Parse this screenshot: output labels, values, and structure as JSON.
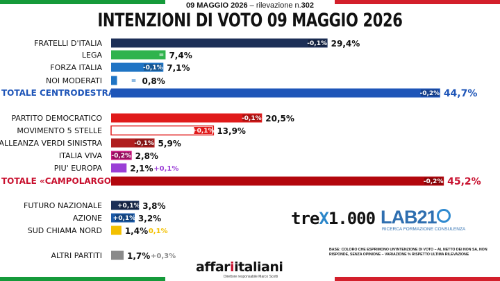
{
  "header": {
    "date_bold": "09 MAGGIO 2026",
    "date_rest": " – rilevazione n.",
    "survey_no": "302",
    "title": "INTENZIONI DI VOTO 09 MAGGIO 2026"
  },
  "colors": {
    "flag_green": "#159a3a",
    "flag_red": "#d31f2b",
    "brand_red": "#c8102e"
  },
  "chart_data": {
    "type": "bar",
    "orientation": "horizontal",
    "unit": "%",
    "rows": [
      {
        "label": "FRATELLI D'ITALIA",
        "value": 29.4,
        "value_label": "29,4%",
        "change": "-0,1%",
        "color": "#1c2f57"
      },
      {
        "label": "LEGA",
        "value": 7.4,
        "value_label": "7,4%",
        "change": "=",
        "color": "#2fb34d"
      },
      {
        "label": "FORZA ITALIA",
        "value": 7.1,
        "value_label": "7,1%",
        "change": "-0,1%",
        "color": "#1f74c4"
      },
      {
        "label": "NOI MODERATI",
        "value": 0.8,
        "value_label": "0,8%",
        "change": "=",
        "color": "#1f74c4"
      },
      {
        "label": "TOTALE CENTRODESTRA",
        "value": 44.7,
        "value_label": "44,7%",
        "change": "-0,2%",
        "color": "#1e55b8",
        "total": true,
        "text_color": "#1e55b8"
      },
      {
        "label": "PARTITO DEMOCRATICO",
        "value": 20.5,
        "value_label": "20,5%",
        "change": "-0,1%",
        "color": "#e01a1a"
      },
      {
        "label": "MOVIMENTO 5 STELLE",
        "value": 13.9,
        "value_label": "13,9%",
        "change": "+0,1%",
        "color": "#ffffff",
        "outline": "#e01a1a"
      },
      {
        "label": "ALLEANZA VERDI SINISTRA",
        "value": 5.9,
        "value_label": "5,9%",
        "change": "-0,1%",
        "color": "#b01e1e"
      },
      {
        "label": "ITALIA VIVA",
        "value": 2.8,
        "value_label": "2,8%",
        "change": "-0,2%",
        "color": "#c9167f"
      },
      {
        "label": "PIU' EUROPA",
        "value": 2.1,
        "value_label": "2,1%",
        "change": "+0,1%",
        "color": "#9b3fd6",
        "change_outside": true
      },
      {
        "label": "TOTALE «CAMPOLARGO»",
        "value": 45.2,
        "value_label": "45,2%",
        "change": "-0,2%",
        "color": "#b3070d",
        "total": true,
        "text_color": "#c8102e"
      },
      {
        "label": "FUTURO NAZIONALE",
        "value": 3.8,
        "value_label": "3,8%",
        "change": "+0,1%",
        "color": "#1c2f57"
      },
      {
        "label": "AZIONE",
        "value": 3.2,
        "value_label": "3,2%",
        "change": "+0,1%",
        "color": "#1a5aa8"
      },
      {
        "label": "SUD CHIAMA NORD",
        "value": 1.4,
        "value_label": "1,4%",
        "change": "0,1%",
        "color": "#f3c000",
        "change_outside": true
      },
      {
        "label": "ALTRI PARTITI",
        "value": 1.7,
        "value_label": "1,7%",
        "change": "+0,3%",
        "color": "#8a8a8a",
        "change_outside": true
      }
    ]
  },
  "logos": {
    "trex_a": "tre",
    "trex_x": "X",
    "trex_b": "1.000",
    "lab_text": "LAB21",
    "lab_sub": "RICERCA FORMAZIONE CONSULENZA"
  },
  "note": "BASE: COLORO CHE ESPRIMONO UN'INTENZIONE DI VOTO – AL NETTO DEI NON SA, NON RISPONDE, SENZA OPINIONE – VARIAZIONE % RISPETTO ULTIMA RILEVAZIONE",
  "brand": {
    "a": "affar",
    "one": "i",
    "b": "italiani",
    "sub": "Direttore responsabile Marco Scotti"
  }
}
